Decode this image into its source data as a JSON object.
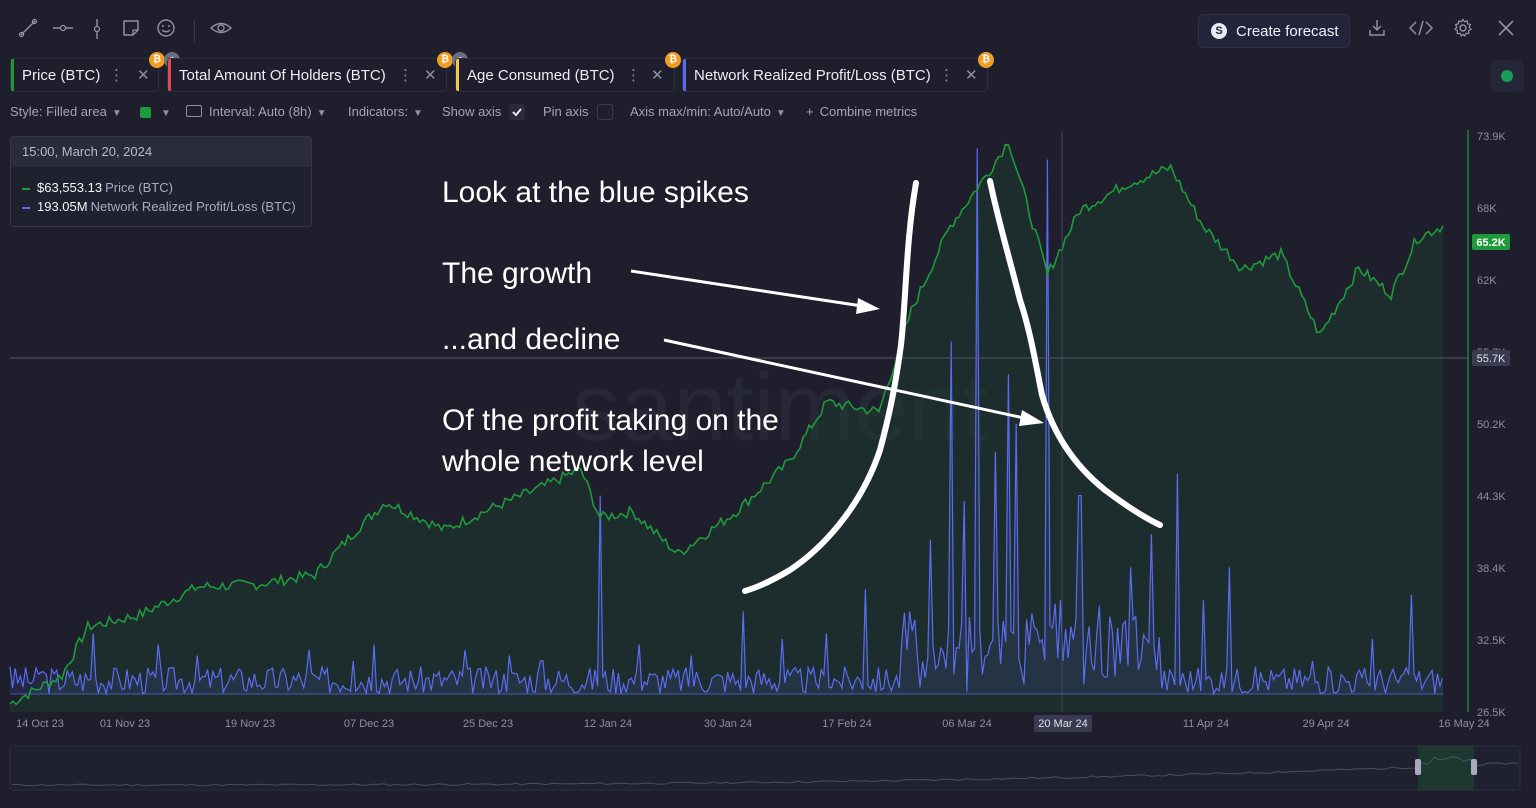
{
  "toolbar": {
    "icons": [
      "trend-line-icon",
      "horizontal-ray-icon",
      "vertical-line-icon",
      "sticky-note-icon",
      "emoji-icon",
      "eye-icon"
    ],
    "forecast_label": "Create forecast",
    "right_icons": [
      "download-icon",
      "embed-code-icon",
      "settings-gear-icon",
      "close-icon"
    ]
  },
  "metrics": [
    {
      "name": "Price (BTC)",
      "color": "#1e9a3a",
      "hidden": false
    },
    {
      "name": "Total Amount Of Holders (BTC)",
      "color": "#e5484d",
      "hidden": true
    },
    {
      "name": "Age Consumed (BTC)",
      "color": "#f2c94c",
      "hidden": true
    },
    {
      "name": "Network Realized Profit/Loss (BTC)",
      "color": "#5a6cf0",
      "hidden": false
    }
  ],
  "settings": {
    "style": "Style: Filled area",
    "interval": "Interval: Auto (8h)",
    "indicators": "Indicators:",
    "show_axis": "Show axis",
    "pin_axis": "Pin axis",
    "axis_maxmin": "Axis max/min: Auto/Auto",
    "combine": "Combine metrics"
  },
  "tooltip": {
    "date": "15:00, March 20, 2024",
    "price_value": "$63,553.13",
    "price_name": "Price (BTC)",
    "nrpl_value": "193.05M",
    "nrpl_name": "Network Realized Profit/Loss (BTC)"
  },
  "watermark": "santiment",
  "annotations": {
    "blue_spikes": "Look at the blue spikes",
    "growth": "The growth",
    "decline": "...and decline",
    "profit_line1": "Of the profit taking on the",
    "profit_line2": "whole network level"
  },
  "chart_data": {
    "type": "area",
    "x_ticks": [
      "14 Oct 23",
      "01 Nov 23",
      "19 Nov 23",
      "07 Dec 23",
      "25 Dec 23",
      "12 Jan 24",
      "30 Jan 24",
      "17 Feb 24",
      "06 Mar 24",
      "20 Mar 24",
      "11 Apr 24",
      "29 Apr 24",
      "16 May 24"
    ],
    "y_ticks": [
      "73.9K",
      "68K",
      "62K",
      "55.7K",
      "50.2K",
      "44.3K",
      "38.4K",
      "32.5K",
      "26.5K"
    ],
    "y_range": [
      26500,
      73900
    ],
    "price_last_label": "65.2K",
    "crosshair_label": "55.7K",
    "crosshair_date": "20 Mar 24",
    "series": [
      {
        "name": "Price (BTC)",
        "color": "#1e9a3a",
        "dates": [
          "2023-10-12",
          "2023-10-20",
          "2023-10-24",
          "2023-11-01",
          "2023-11-10",
          "2023-11-19",
          "2023-11-28",
          "2023-12-05",
          "2023-12-09",
          "2023-12-18",
          "2023-12-25",
          "2024-01-02",
          "2024-01-08",
          "2024-01-11",
          "2024-01-16",
          "2024-01-23",
          "2024-02-01",
          "2024-02-09",
          "2024-02-15",
          "2024-02-23",
          "2024-02-28",
          "2024-03-05",
          "2024-03-11",
          "2024-03-14",
          "2024-03-20",
          "2024-03-25",
          "2024-04-01",
          "2024-04-08",
          "2024-04-13",
          "2024-04-19",
          "2024-04-25",
          "2024-05-01",
          "2024-05-07",
          "2024-05-12",
          "2024-05-16",
          "2024-05-20"
        ],
        "values": [
          27200,
          29500,
          33500,
          34500,
          36800,
          37000,
          37800,
          41800,
          43800,
          41500,
          43200,
          45000,
          46500,
          42500,
          43000,
          39500,
          43000,
          47000,
          52000,
          51200,
          59500,
          66500,
          71000,
          73500,
          62500,
          67800,
          69900,
          71300,
          66500,
          63000,
          64200,
          57500,
          63000,
          60900,
          65500,
          66500
        ]
      },
      {
        "name": "Network Realized Profit/Loss (BTC)",
        "color": "#5a6cf0",
        "tooltip_value": "193.05M",
        "spike_dates": [
          "2023-10-12",
          "2023-10-17",
          "2023-10-25",
          "2023-11-04",
          "2023-11-10",
          "2023-11-27",
          "2023-12-04",
          "2023-12-07",
          "2023-12-21",
          "2023-12-28",
          "2024-01-02",
          "2024-01-11",
          "2024-01-17",
          "2024-01-25",
          "2024-02-02",
          "2024-02-08",
          "2024-02-15",
          "2024-02-21",
          "2024-02-27",
          "2024-03-02",
          "2024-03-05",
          "2024-03-07",
          "2024-03-09",
          "2024-03-12",
          "2024-03-14",
          "2024-03-15",
          "2024-03-20",
          "2024-03-22",
          "2024-03-25",
          "2024-03-28",
          "2024-04-02",
          "2024-04-05",
          "2024-04-09",
          "2024-04-13",
          "2024-04-17",
          "2024-04-30",
          "2024-05-09",
          "2024-05-15"
        ],
        "spike_heights": [
          0.05,
          0.04,
          0.11,
          0.09,
          0.07,
          0.08,
          0.06,
          0.09,
          0.08,
          0.07,
          0.06,
          0.36,
          0.09,
          0.07,
          0.15,
          0.1,
          0.11,
          0.19,
          0.12,
          0.28,
          0.64,
          0.35,
          0.99,
          0.44,
          0.58,
          0.49,
          0.97,
          0.17,
          0.36,
          0.16,
          0.23,
          0.29,
          0.4,
          0.17,
          0.23,
          0.06,
          0.1,
          0.18
        ]
      }
    ]
  }
}
